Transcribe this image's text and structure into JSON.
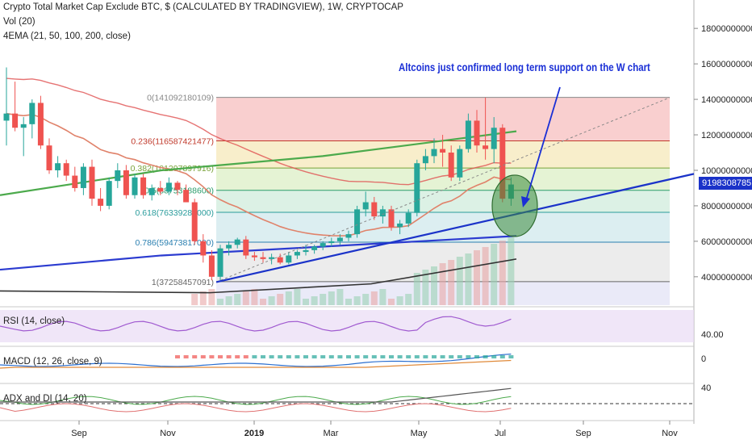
{
  "header": {
    "title": "Crypto Total Market Cap Exclude BTC, $ (CALCULATED BY TRADINGVIEW), 1W, CRYPTOCAP",
    "vol": "Vol (20)",
    "ema": "4EMA (21, 50, 100, 200, close)"
  },
  "annotation": "Altcoins just confirmed long term support on the W chart",
  "price_tag": "91983087851",
  "panes": {
    "rsi": "RSI (14, close)",
    "macd": "MACD (12, 26, close, 9)",
    "adx": "ADX and DI (14, 20)"
  },
  "chart_data": {
    "type": "candlestick",
    "title": "Crypto Total Market Cap Exclude BTC, $ (CALCULATED BY TRADINGVIEW), 1W, CRYPTOCAP",
    "x_ticks": [
      "Sep",
      "Nov",
      "2019",
      "Mar",
      "May",
      "Jul",
      "Sep",
      "Nov"
    ],
    "y_ticks": [
      40000000000,
      60000000000,
      80000000000,
      100000000000,
      120000000000,
      140000000000,
      160000000000,
      180000000000
    ],
    "y_tick_labels": [
      "40000000000",
      "60000000000",
      "80000000000",
      "100000000000",
      "120000000000",
      "140000000000",
      "160000000000",
      "180000000000"
    ],
    "ylim": [
      24000000000,
      196000000000
    ],
    "last_price": 91983087851,
    "fibonacci": [
      {
        "label": "0(141092180109)",
        "level": 0,
        "value": 141092180109,
        "color": "#f4a8a8"
      },
      {
        "label": "0.236(116587421477)",
        "level": 0.236,
        "value": 116587421477,
        "color": "#f2e0a0"
      },
      {
        "label": "0.382(101297897916)",
        "level": 0.382,
        "value": 101297897916,
        "color": "#cfe9b0"
      },
      {
        "label": "0.5(88753188600)",
        "level": 0.5,
        "value": 88753188600,
        "color": "#bfe6cf"
      },
      {
        "label": "0.618(76339284000)",
        "level": 0.618,
        "value": 76339284000,
        "color": "#bfe0e6"
      },
      {
        "label": "0.786(59473817000)",
        "level": 0.786,
        "value": 59473817000,
        "color": "#dcdcdc"
      },
      {
        "label": "1(37258457091)",
        "level": 1,
        "value": 37258457091,
        "color": "#d8d8f2"
      }
    ],
    "candles": [
      {
        "o": 128,
        "h": 158,
        "l": 114,
        "c": 132
      },
      {
        "o": 132,
        "h": 150,
        "l": 122,
        "c": 124
      },
      {
        "o": 124,
        "h": 130,
        "l": 108,
        "c": 126
      },
      {
        "o": 126,
        "h": 140,
        "l": 118,
        "c": 138
      },
      {
        "o": 138,
        "h": 142,
        "l": 112,
        "c": 114
      },
      {
        "o": 114,
        "h": 118,
        "l": 98,
        "c": 100
      },
      {
        "o": 100,
        "h": 108,
        "l": 96,
        "c": 104
      },
      {
        "o": 104,
        "h": 106,
        "l": 94,
        "c": 97
      },
      {
        "o": 97,
        "h": 102,
        "l": 88,
        "c": 90
      },
      {
        "o": 90,
        "h": 104,
        "l": 86,
        "c": 102
      },
      {
        "o": 102,
        "h": 106,
        "l": 80,
        "c": 84
      },
      {
        "o": 84,
        "h": 90,
        "l": 77,
        "c": 80
      },
      {
        "o": 80,
        "h": 96,
        "l": 78,
        "c": 94
      },
      {
        "o": 94,
        "h": 104,
        "l": 90,
        "c": 100
      },
      {
        "o": 100,
        "h": 103,
        "l": 84,
        "c": 86
      },
      {
        "o": 86,
        "h": 98,
        "l": 84,
        "c": 96
      },
      {
        "o": 96,
        "h": 98,
        "l": 84,
        "c": 86
      },
      {
        "o": 86,
        "h": 92,
        "l": 83,
        "c": 90
      },
      {
        "o": 90,
        "h": 94,
        "l": 86,
        "c": 88
      },
      {
        "o": 88,
        "h": 96,
        "l": 86,
        "c": 93
      },
      {
        "o": 93,
        "h": 94,
        "l": 86,
        "c": 89
      },
      {
        "o": 89,
        "h": 92,
        "l": 82,
        "c": 82
      },
      {
        "o": 82,
        "h": 84,
        "l": 58,
        "c": 60
      },
      {
        "o": 60,
        "h": 64,
        "l": 48,
        "c": 52
      },
      {
        "o": 52,
        "h": 55,
        "l": 38,
        "c": 40
      },
      {
        "o": 40,
        "h": 58,
        "l": 38,
        "c": 56
      },
      {
        "o": 56,
        "h": 60,
        "l": 52,
        "c": 58
      },
      {
        "o": 58,
        "h": 62,
        "l": 56,
        "c": 61
      },
      {
        "o": 61,
        "h": 63,
        "l": 50,
        "c": 52
      },
      {
        "o": 52,
        "h": 54,
        "l": 49,
        "c": 51
      },
      {
        "o": 51,
        "h": 54,
        "l": 48,
        "c": 50
      },
      {
        "o": 50,
        "h": 53,
        "l": 47,
        "c": 51
      },
      {
        "o": 51,
        "h": 53,
        "l": 47,
        "c": 48
      },
      {
        "o": 48,
        "h": 54,
        "l": 47,
        "c": 52
      },
      {
        "o": 52,
        "h": 55,
        "l": 50,
        "c": 54
      },
      {
        "o": 54,
        "h": 58,
        "l": 52,
        "c": 55
      },
      {
        "o": 55,
        "h": 58,
        "l": 53,
        "c": 57
      },
      {
        "o": 57,
        "h": 60,
        "l": 55,
        "c": 59
      },
      {
        "o": 59,
        "h": 62,
        "l": 57,
        "c": 60
      },
      {
        "o": 60,
        "h": 64,
        "l": 58,
        "c": 62
      },
      {
        "o": 62,
        "h": 66,
        "l": 60,
        "c": 64
      },
      {
        "o": 64,
        "h": 80,
        "l": 62,
        "c": 78
      },
      {
        "o": 78,
        "h": 88,
        "l": 74,
        "c": 82
      },
      {
        "o": 82,
        "h": 85,
        "l": 72,
        "c": 74
      },
      {
        "o": 74,
        "h": 80,
        "l": 70,
        "c": 78
      },
      {
        "o": 78,
        "h": 80,
        "l": 66,
        "c": 68
      },
      {
        "o": 68,
        "h": 72,
        "l": 64,
        "c": 70
      },
      {
        "o": 70,
        "h": 78,
        "l": 68,
        "c": 76
      },
      {
        "o": 76,
        "h": 106,
        "l": 74,
        "c": 104
      },
      {
        "o": 104,
        "h": 112,
        "l": 100,
        "c": 108
      },
      {
        "o": 108,
        "h": 118,
        "l": 104,
        "c": 112
      },
      {
        "o": 112,
        "h": 120,
        "l": 102,
        "c": 110
      },
      {
        "o": 110,
        "h": 114,
        "l": 94,
        "c": 96
      },
      {
        "o": 96,
        "h": 114,
        "l": 94,
        "c": 112
      },
      {
        "o": 112,
        "h": 132,
        "l": 110,
        "c": 128
      },
      {
        "o": 128,
        "h": 134,
        "l": 110,
        "c": 114
      },
      {
        "o": 114,
        "h": 141,
        "l": 106,
        "c": 112
      },
      {
        "o": 112,
        "h": 130,
        "l": 104,
        "c": 124
      },
      {
        "o": 124,
        "h": 126,
        "l": 82,
        "c": 84
      },
      {
        "o": 84,
        "h": 96,
        "l": 80,
        "c": 92
      }
    ]
  }
}
